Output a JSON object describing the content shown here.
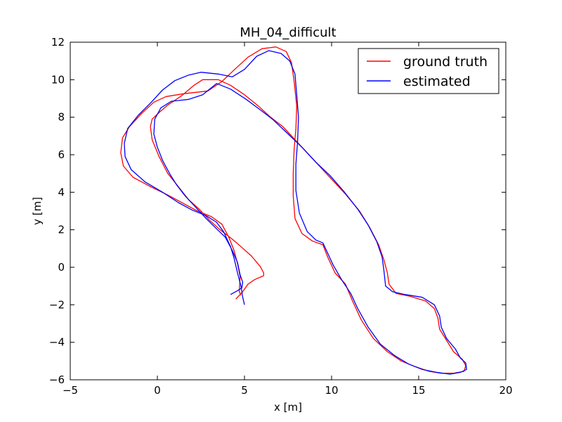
{
  "chart_data": {
    "type": "line",
    "title": "MH_04_difficult",
    "xlabel": "x [m]",
    "ylabel": "y [m]",
    "xlim": [
      -5,
      20
    ],
    "ylim": [
      -6,
      12
    ],
    "xticks": [
      -5,
      0,
      5,
      10,
      15,
      20
    ],
    "yticks": [
      -6,
      -4,
      -2,
      0,
      2,
      4,
      6,
      8,
      10,
      12
    ],
    "grid": false,
    "legend_position": "top-right",
    "series": [
      {
        "name": "ground truth",
        "color": "#ff0000",
        "points": [
          [
            4.5,
            -1.7
          ],
          [
            4.9,
            -1.3
          ],
          [
            5.2,
            -0.9
          ],
          [
            5.6,
            -0.65
          ],
          [
            6.1,
            -0.45
          ],
          [
            6.1,
            -0.3
          ],
          [
            5.9,
            0.05
          ],
          [
            5.4,
            0.6
          ],
          [
            4.8,
            1.1
          ],
          [
            4.3,
            1.5
          ],
          [
            3.6,
            2.0
          ],
          [
            3.0,
            2.5
          ],
          [
            2.4,
            3.1
          ],
          [
            1.8,
            3.6
          ],
          [
            1.2,
            4.3
          ],
          [
            0.6,
            5.0
          ],
          [
            0.1,
            5.9
          ],
          [
            -0.3,
            6.8
          ],
          [
            -0.4,
            7.5
          ],
          [
            -0.3,
            7.9
          ],
          [
            0.1,
            8.25
          ],
          [
            0.6,
            8.65
          ],
          [
            1.4,
            9.15
          ],
          [
            2.1,
            9.7
          ],
          [
            2.6,
            10.0
          ],
          [
            3.5,
            10.0
          ],
          [
            4.2,
            9.7
          ],
          [
            5.0,
            9.2
          ],
          [
            5.8,
            8.6
          ],
          [
            6.5,
            8.0
          ],
          [
            7.2,
            7.5
          ],
          [
            8.1,
            6.6
          ],
          [
            9.0,
            5.7
          ],
          [
            9.9,
            4.8
          ],
          [
            10.8,
            3.9
          ],
          [
            11.6,
            3.0
          ],
          [
            12.2,
            2.1
          ],
          [
            12.7,
            1.2
          ],
          [
            13.0,
            0.4
          ],
          [
            13.2,
            -0.3
          ],
          [
            13.3,
            -0.9
          ],
          [
            13.7,
            -1.4
          ],
          [
            14.5,
            -1.55
          ],
          [
            15.4,
            -1.8
          ],
          [
            15.9,
            -2.2
          ],
          [
            16.1,
            -2.7
          ],
          [
            16.2,
            -3.3
          ],
          [
            16.6,
            -3.9
          ],
          [
            17.0,
            -4.5
          ],
          [
            17.5,
            -4.9
          ],
          [
            17.7,
            -5.25
          ],
          [
            17.6,
            -5.55
          ],
          [
            17.0,
            -5.65
          ],
          [
            16.3,
            -5.65
          ],
          [
            15.6,
            -5.55
          ],
          [
            14.8,
            -5.3
          ],
          [
            14.0,
            -5.0
          ],
          [
            13.2,
            -4.5
          ],
          [
            12.4,
            -3.8
          ],
          [
            11.7,
            -2.8
          ],
          [
            11.2,
            -1.8
          ],
          [
            10.8,
            -0.9
          ],
          [
            10.2,
            -0.3
          ],
          [
            9.8,
            0.5
          ],
          [
            9.5,
            1.2
          ],
          [
            8.9,
            1.4
          ],
          [
            8.3,
            1.8
          ],
          [
            7.9,
            2.6
          ],
          [
            7.8,
            3.8
          ],
          [
            7.8,
            5.0
          ],
          [
            7.85,
            6.3
          ],
          [
            7.95,
            7.4
          ],
          [
            8.0,
            8.6
          ],
          [
            7.85,
            9.9
          ],
          [
            7.7,
            10.9
          ],
          [
            7.4,
            11.5
          ],
          [
            6.8,
            11.75
          ],
          [
            6.0,
            11.65
          ],
          [
            5.2,
            11.2
          ],
          [
            4.5,
            10.6
          ],
          [
            3.7,
            9.9
          ],
          [
            2.9,
            9.4
          ],
          [
            1.5,
            9.25
          ],
          [
            0.5,
            9.1
          ],
          [
            -0.2,
            8.8
          ],
          [
            -0.9,
            8.2
          ],
          [
            -1.6,
            7.5
          ],
          [
            -2.0,
            6.9
          ],
          [
            -2.1,
            6.1
          ],
          [
            -1.95,
            5.4
          ],
          [
            -1.4,
            4.8
          ],
          [
            -0.4,
            4.3
          ],
          [
            0.6,
            3.85
          ],
          [
            1.5,
            3.4
          ],
          [
            2.3,
            3.0
          ],
          [
            3.1,
            2.7
          ],
          [
            3.7,
            2.3
          ],
          [
            4.1,
            1.6
          ],
          [
            4.4,
            0.9
          ],
          [
            4.6,
            0.2
          ],
          [
            4.75,
            -0.5
          ],
          [
            4.7,
            -1.3
          ],
          [
            4.8,
            -1.5
          ]
        ]
      },
      {
        "name": "estimated",
        "color": "#0000ff",
        "points": [
          [
            4.2,
            -1.45
          ],
          [
            4.6,
            -1.25
          ],
          [
            4.85,
            -1.1
          ],
          [
            4.9,
            -0.8
          ],
          [
            4.75,
            -0.4
          ],
          [
            4.6,
            0.25
          ],
          [
            4.3,
            0.9
          ],
          [
            3.9,
            1.6
          ],
          [
            3.4,
            2.05
          ],
          [
            2.8,
            2.6
          ],
          [
            2.2,
            3.2
          ],
          [
            1.6,
            3.8
          ],
          [
            1.1,
            4.4
          ],
          [
            0.7,
            5.0
          ],
          [
            0.3,
            5.7
          ],
          [
            0.0,
            6.4
          ],
          [
            -0.2,
            7.1
          ],
          [
            -0.15,
            7.9
          ],
          [
            0.2,
            8.5
          ],
          [
            0.8,
            8.85
          ],
          [
            1.8,
            8.95
          ],
          [
            2.6,
            9.2
          ],
          [
            3.4,
            9.8
          ],
          [
            4.2,
            9.5
          ],
          [
            5.1,
            8.95
          ],
          [
            5.9,
            8.4
          ],
          [
            6.6,
            7.9
          ],
          [
            7.4,
            7.2
          ],
          [
            8.3,
            6.4
          ],
          [
            9.1,
            5.6
          ],
          [
            9.9,
            4.9
          ],
          [
            10.7,
            4.05
          ],
          [
            11.5,
            3.1
          ],
          [
            12.1,
            2.25
          ],
          [
            12.6,
            1.35
          ],
          [
            12.9,
            0.55
          ],
          [
            13.0,
            -0.15
          ],
          [
            13.1,
            -1.0
          ],
          [
            13.5,
            -1.3
          ],
          [
            14.2,
            -1.45
          ],
          [
            15.2,
            -1.6
          ],
          [
            15.9,
            -2.0
          ],
          [
            16.2,
            -2.6
          ],
          [
            16.3,
            -3.2
          ],
          [
            16.6,
            -3.8
          ],
          [
            17.1,
            -4.35
          ],
          [
            17.4,
            -4.85
          ],
          [
            17.7,
            -5.1
          ],
          [
            17.75,
            -5.45
          ],
          [
            17.4,
            -5.6
          ],
          [
            16.8,
            -5.7
          ],
          [
            16.0,
            -5.6
          ],
          [
            15.2,
            -5.45
          ],
          [
            14.4,
            -5.15
          ],
          [
            13.6,
            -4.7
          ],
          [
            12.8,
            -4.1
          ],
          [
            12.1,
            -3.2
          ],
          [
            11.5,
            -2.2
          ],
          [
            11.1,
            -1.4
          ],
          [
            10.6,
            -0.7
          ],
          [
            10.1,
            0.1
          ],
          [
            9.7,
            0.9
          ],
          [
            9.5,
            1.3
          ],
          [
            9.1,
            1.45
          ],
          [
            8.6,
            1.9
          ],
          [
            8.15,
            2.9
          ],
          [
            7.95,
            4.1
          ],
          [
            7.95,
            5.5
          ],
          [
            8.05,
            6.7
          ],
          [
            8.1,
            8.0
          ],
          [
            8.0,
            9.2
          ],
          [
            7.9,
            10.3
          ],
          [
            7.6,
            11.0
          ],
          [
            7.1,
            11.4
          ],
          [
            6.4,
            11.55
          ],
          [
            5.7,
            11.25
          ],
          [
            5.0,
            10.55
          ],
          [
            4.3,
            10.15
          ],
          [
            3.5,
            10.3
          ],
          [
            2.5,
            10.4
          ],
          [
            1.8,
            10.25
          ],
          [
            1.0,
            9.95
          ],
          [
            0.3,
            9.45
          ],
          [
            -0.4,
            8.75
          ],
          [
            -1.1,
            8.1
          ],
          [
            -1.7,
            7.4
          ],
          [
            -1.9,
            6.6
          ],
          [
            -1.85,
            5.9
          ],
          [
            -1.5,
            5.2
          ],
          [
            -0.7,
            4.55
          ],
          [
            0.3,
            4.0
          ],
          [
            1.2,
            3.45
          ],
          [
            2.0,
            3.05
          ],
          [
            2.8,
            2.75
          ],
          [
            3.4,
            2.4
          ],
          [
            3.8,
            1.9
          ],
          [
            4.2,
            1.1
          ],
          [
            4.4,
            0.5
          ],
          [
            4.6,
            -0.3
          ],
          [
            4.8,
            -1.0
          ],
          [
            4.9,
            -1.6
          ],
          [
            5.0,
            -2.0
          ]
        ]
      }
    ]
  }
}
